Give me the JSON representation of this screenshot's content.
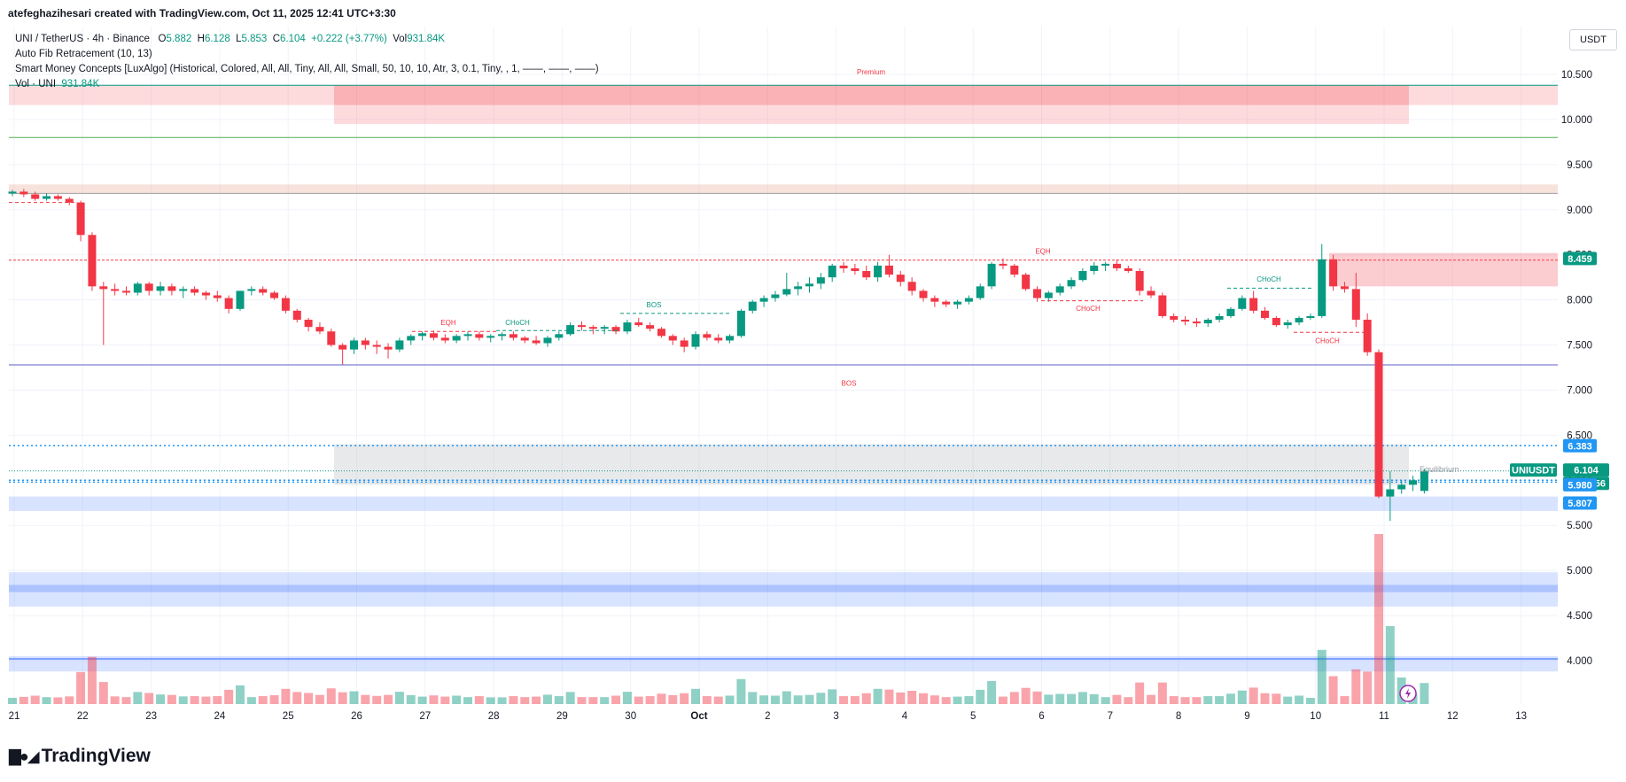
{
  "header": {
    "author_line": "atefeghazihesari created with TradingView.com, Oct 11, 2025 12:41 UTC+3:30"
  },
  "legend": {
    "symbol": "UNI / TetherUS · 4h · Binance",
    "o_label": "O",
    "o": "5.882",
    "h_label": "H",
    "h": "6.128",
    "l_label": "L",
    "l": "5.853",
    "c_label": "C",
    "c": "6.104",
    "change": "+0.222 (+3.77%)",
    "vol_label": "Vol",
    "vol": "931.84K",
    "indicator1": "Auto Fib Retracement (10, 13)",
    "indicator2": "Smart Money Concepts [LuxAlgo] (Historical, Colored, All, All, Tiny, All, All, Small, 50, 10, 10, Atr, 3, 0.1, Tiny, , 1, ——, ——, ——)",
    "indicator3_label": "Vol · UNI",
    "indicator3_value": "931.84K"
  },
  "currency": "USDT",
  "footer": {
    "brand": "TradingView",
    "icon": "tradingview-logo-icon"
  },
  "colors": {
    "up": "#089981",
    "down": "#f23645",
    "premium": "#f23645",
    "discount": "#2962ff",
    "fib_blue": "#2196f3",
    "equilibrium": "#b2b5be"
  },
  "chart_data": {
    "type": "candlestick",
    "symbol": "UNIUSDT",
    "timeframe": "4h",
    "y_range": [
      3.55,
      10.78
    ],
    "y_ticks": [
      "10.500",
      "10.000",
      "9.500",
      "9.000",
      "8.500",
      "8.000",
      "7.500",
      "7.000",
      "6.500",
      "6.000",
      "5.500",
      "5.000",
      "4.500",
      "4.000"
    ],
    "x_labels": [
      "21",
      "22",
      "23",
      "24",
      "25",
      "26",
      "27",
      "28",
      "29",
      "30",
      "Oct",
      "2",
      "3",
      "4",
      "5",
      "6",
      "7",
      "8",
      "9",
      "10",
      "11",
      "12",
      "13"
    ],
    "candles": [
      [
        9.18,
        9.22,
        9.15,
        9.2
      ],
      [
        9.2,
        9.23,
        9.14,
        9.17
      ],
      [
        9.17,
        9.2,
        9.1,
        9.12
      ],
      [
        9.12,
        9.18,
        9.1,
        9.15
      ],
      [
        9.15,
        9.17,
        9.1,
        9.12
      ],
      [
        9.12,
        9.14,
        9.05,
        9.08
      ],
      [
        9.08,
        9.1,
        8.65,
        8.72
      ],
      [
        8.72,
        8.75,
        8.1,
        8.15
      ],
      [
        8.15,
        8.2,
        7.5,
        8.12
      ],
      [
        8.12,
        8.18,
        8.05,
        8.1
      ],
      [
        8.1,
        8.15,
        8.05,
        8.08
      ],
      [
        8.08,
        8.2,
        8.05,
        8.18
      ],
      [
        8.18,
        8.2,
        8.05,
        8.1
      ],
      [
        8.1,
        8.2,
        8.05,
        8.15
      ],
      [
        8.15,
        8.18,
        8.05,
        8.1
      ],
      [
        8.1,
        8.15,
        8.02,
        8.12
      ],
      [
        8.12,
        8.15,
        8.05,
        8.08
      ],
      [
        8.08,
        8.1,
        8.0,
        8.05
      ],
      [
        8.05,
        8.1,
        7.98,
        8.02
      ],
      [
        8.02,
        8.05,
        7.85,
        7.9
      ],
      [
        7.9,
        8.1,
        7.88,
        8.1
      ],
      [
        8.1,
        8.15,
        8.05,
        8.12
      ],
      [
        8.12,
        8.15,
        8.05,
        8.08
      ],
      [
        8.08,
        8.1,
        8.0,
        8.02
      ],
      [
        8.02,
        8.05,
        7.85,
        7.88
      ],
      [
        7.88,
        7.9,
        7.75,
        7.78
      ],
      [
        7.78,
        7.8,
        7.65,
        7.7
      ],
      [
        7.7,
        7.75,
        7.62,
        7.65
      ],
      [
        7.65,
        7.68,
        7.48,
        7.5
      ],
      [
        7.5,
        7.52,
        7.28,
        7.45
      ],
      [
        7.45,
        7.58,
        7.4,
        7.55
      ],
      [
        7.55,
        7.58,
        7.45,
        7.5
      ],
      [
        7.5,
        7.55,
        7.4,
        7.48
      ],
      [
        7.48,
        7.52,
        7.35,
        7.45
      ],
      [
        7.45,
        7.58,
        7.42,
        7.55
      ],
      [
        7.55,
        7.62,
        7.5,
        7.6
      ],
      [
        7.6,
        7.65,
        7.55,
        7.63
      ],
      [
        7.63,
        7.66,
        7.55,
        7.58
      ],
      [
        7.58,
        7.62,
        7.52,
        7.55
      ],
      [
        7.55,
        7.62,
        7.52,
        7.6
      ],
      [
        7.6,
        7.65,
        7.55,
        7.62
      ],
      [
        7.62,
        7.65,
        7.55,
        7.58
      ],
      [
        7.58,
        7.62,
        7.53,
        7.6
      ],
      [
        7.6,
        7.64,
        7.55,
        7.62
      ],
      [
        7.62,
        7.65,
        7.55,
        7.58
      ],
      [
        7.58,
        7.6,
        7.52,
        7.55
      ],
      [
        7.55,
        7.6,
        7.5,
        7.52
      ],
      [
        7.52,
        7.6,
        7.48,
        7.58
      ],
      [
        7.58,
        7.65,
        7.55,
        7.62
      ],
      [
        7.62,
        7.75,
        7.6,
        7.72
      ],
      [
        7.72,
        7.76,
        7.66,
        7.7
      ],
      [
        7.7,
        7.72,
        7.62,
        7.68
      ],
      [
        7.68,
        7.72,
        7.62,
        7.7
      ],
      [
        7.7,
        7.72,
        7.62,
        7.65
      ],
      [
        7.65,
        7.78,
        7.62,
        7.75
      ],
      [
        7.75,
        7.8,
        7.7,
        7.72
      ],
      [
        7.72,
        7.75,
        7.65,
        7.68
      ],
      [
        7.68,
        7.7,
        7.58,
        7.6
      ],
      [
        7.6,
        7.62,
        7.5,
        7.55
      ],
      [
        7.55,
        7.58,
        7.42,
        7.48
      ],
      [
        7.48,
        7.65,
        7.45,
        7.62
      ],
      [
        7.62,
        7.65,
        7.55,
        7.58
      ],
      [
        7.58,
        7.62,
        7.52,
        7.55
      ],
      [
        7.55,
        7.62,
        7.52,
        7.6
      ],
      [
        7.6,
        7.9,
        7.58,
        7.88
      ],
      [
        7.88,
        8.0,
        7.85,
        7.98
      ],
      [
        7.98,
        8.05,
        7.92,
        8.02
      ],
      [
        8.02,
        8.1,
        7.98,
        8.06
      ],
      [
        8.06,
        8.3,
        8.04,
        8.12
      ],
      [
        8.12,
        8.2,
        8.05,
        8.15
      ],
      [
        8.15,
        8.25,
        8.08,
        8.18
      ],
      [
        8.18,
        8.3,
        8.12,
        8.25
      ],
      [
        8.25,
        8.4,
        8.2,
        8.38
      ],
      [
        8.38,
        8.42,
        8.3,
        8.35
      ],
      [
        8.35,
        8.4,
        8.28,
        8.32
      ],
      [
        8.32,
        8.38,
        8.22,
        8.25
      ],
      [
        8.25,
        8.42,
        8.2,
        8.38
      ],
      [
        8.38,
        8.5,
        8.25,
        8.28
      ],
      [
        8.28,
        8.32,
        8.15,
        8.2
      ],
      [
        8.2,
        8.25,
        8.05,
        8.1
      ],
      [
        8.1,
        8.12,
        7.98,
        8.02
      ],
      [
        8.02,
        8.05,
        7.92,
        7.98
      ],
      [
        7.98,
        8.0,
        7.92,
        7.95
      ],
      [
        7.95,
        8.0,
        7.9,
        7.98
      ],
      [
        7.98,
        8.05,
        7.95,
        8.02
      ],
      [
        8.02,
        8.18,
        8.0,
        8.15
      ],
      [
        8.15,
        8.42,
        8.12,
        8.4
      ],
      [
        8.4,
        8.46,
        8.34,
        8.38
      ],
      [
        8.38,
        8.4,
        8.25,
        8.28
      ],
      [
        8.28,
        8.3,
        8.1,
        8.12
      ],
      [
        8.12,
        8.15,
        7.98,
        8.02
      ],
      [
        8.02,
        8.1,
        7.98,
        8.08
      ],
      [
        8.08,
        8.18,
        8.05,
        8.15
      ],
      [
        8.15,
        8.25,
        8.12,
        8.22
      ],
      [
        8.22,
        8.35,
        8.2,
        8.32
      ],
      [
        8.32,
        8.42,
        8.28,
        8.38
      ],
      [
        8.38,
        8.42,
        8.32,
        8.4
      ],
      [
        8.4,
        8.45,
        8.32,
        8.35
      ],
      [
        8.35,
        8.38,
        8.3,
        8.32
      ],
      [
        8.32,
        8.35,
        8.05,
        8.1
      ],
      [
        8.1,
        8.15,
        8.02,
        8.05
      ],
      [
        8.05,
        8.08,
        7.8,
        7.82
      ],
      [
        7.82,
        7.85,
        7.75,
        7.78
      ],
      [
        7.78,
        7.82,
        7.72,
        7.76
      ],
      [
        7.76,
        7.8,
        7.7,
        7.74
      ],
      [
        7.74,
        7.8,
        7.7,
        7.78
      ],
      [
        7.78,
        7.85,
        7.75,
        7.82
      ],
      [
        7.82,
        7.92,
        7.8,
        7.9
      ],
      [
        7.9,
        8.05,
        7.88,
        8.02
      ],
      [
        8.02,
        8.1,
        7.85,
        7.88
      ],
      [
        7.88,
        7.92,
        7.78,
        7.8
      ],
      [
        7.8,
        7.82,
        7.7,
        7.72
      ],
      [
        7.72,
        7.78,
        7.68,
        7.75
      ],
      [
        7.75,
        7.82,
        7.72,
        7.8
      ],
      [
        7.8,
        7.85,
        7.78,
        7.82
      ],
      [
        7.82,
        8.62,
        7.8,
        8.45
      ],
      [
        8.45,
        8.5,
        8.1,
        8.15
      ],
      [
        8.15,
        8.2,
        8.08,
        8.12
      ],
      [
        8.12,
        8.3,
        7.7,
        7.78
      ],
      [
        7.78,
        7.85,
        7.38,
        7.42
      ],
      [
        7.42,
        7.45,
        5.8,
        5.82
      ],
      [
        5.82,
        6.1,
        5.55,
        5.9
      ],
      [
        5.9,
        6.0,
        5.85,
        5.95
      ],
      [
        5.95,
        6.05,
        5.88,
        6.0
      ],
      [
        5.882,
        6.128,
        5.853,
        6.104
      ]
    ],
    "volume_bars_shown": true,
    "zones": [
      {
        "label": "Premium",
        "from": 10.16,
        "to": 10.38,
        "type": "premium"
      },
      {
        "label": "",
        "from": 9.95,
        "to": 10.16,
        "type": "premium"
      },
      {
        "label": "Equilibrium",
        "from": 5.95,
        "to": 6.4,
        "type": "equilibrium"
      },
      {
        "label": "",
        "from": 5.66,
        "to": 5.82,
        "type": "discount"
      },
      {
        "label": "",
        "from": 4.6,
        "to": 4.98,
        "type": "discount"
      },
      {
        "label": "",
        "from": 3.88,
        "to": 4.05,
        "type": "discount"
      },
      {
        "label": "",
        "from": 8.15,
        "to": 8.52,
        "type": "order_block"
      }
    ],
    "structure_labels": [
      "Premium",
      "EQH",
      "CHoCH",
      "BOS",
      "EQH",
      "CHoCH",
      "CHoCH",
      "CHoCH",
      "BOS",
      "Equilibrium"
    ],
    "price_labels": [
      {
        "text": "8.459",
        "value": 8.459,
        "color": "#089981"
      },
      {
        "text": "6.383",
        "value": 6.383,
        "color": "#2196f3"
      },
      {
        "text": "UNIUSDT",
        "value": 6.104,
        "color": "#089981"
      },
      {
        "text": "6.104",
        "value": 6.104,
        "color": "#089981"
      },
      {
        "text": "02:48:56",
        "value": 6.104,
        "color": "#089981"
      },
      {
        "text": "5.980",
        "value": 5.98,
        "color": "#2196f3"
      },
      {
        "text": "5.807",
        "value": 5.807,
        "color": "#2196f3"
      }
    ]
  }
}
